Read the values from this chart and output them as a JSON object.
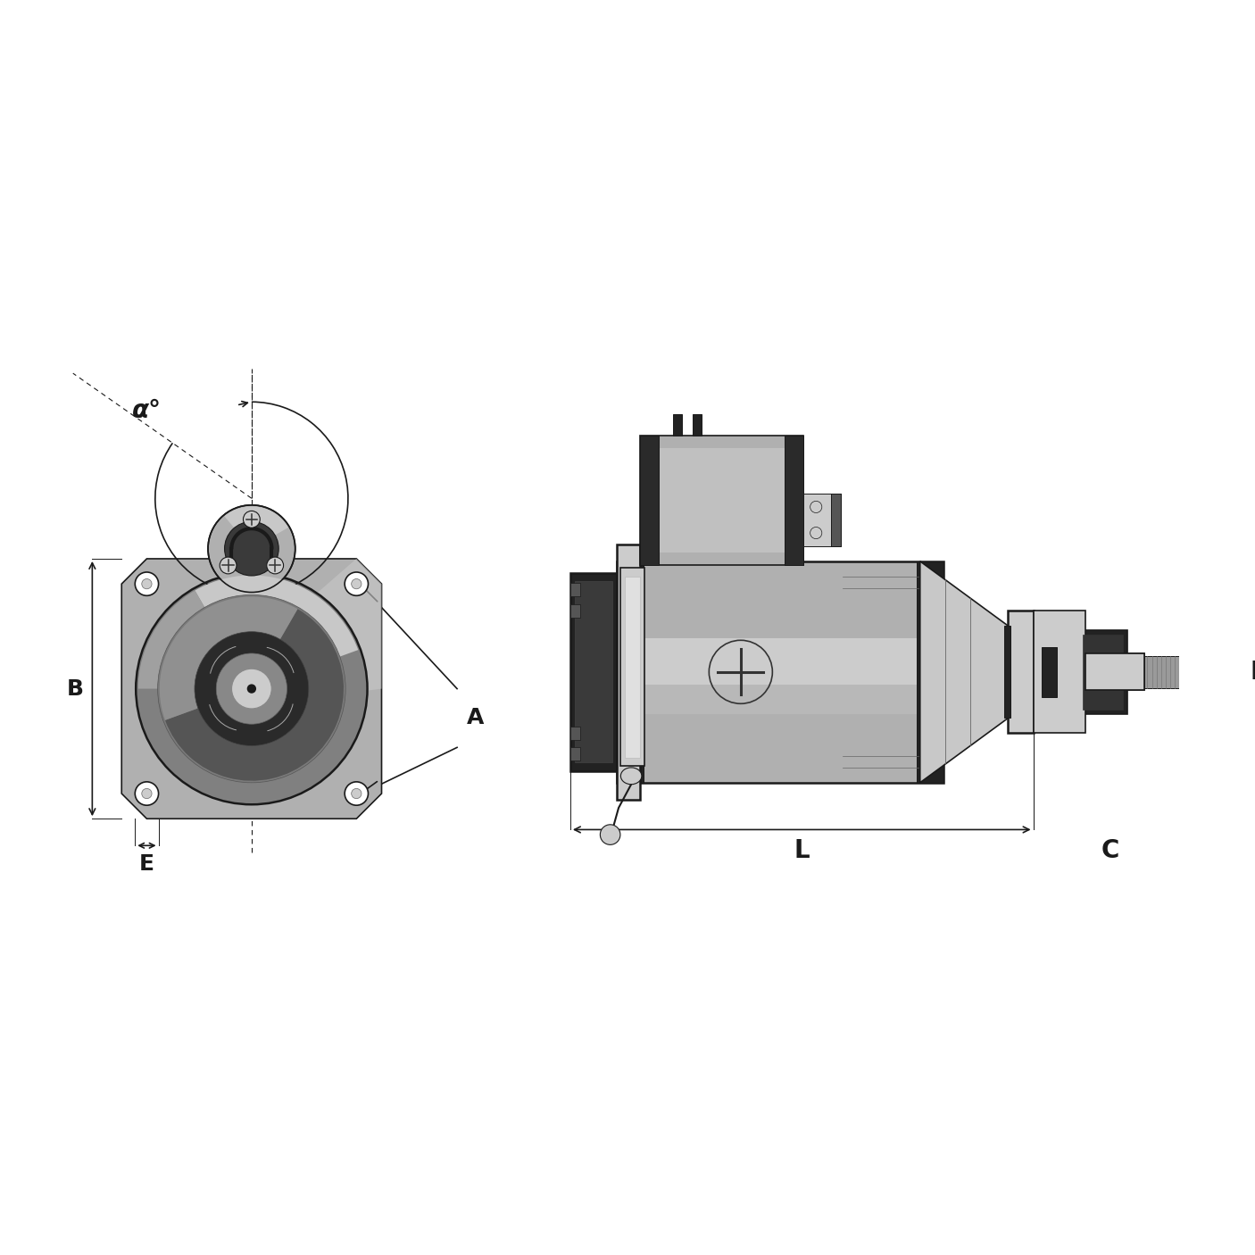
{
  "bg_color": "#ffffff",
  "lc": "#1a1a1a",
  "dg": "#333333",
  "mg": "#666666",
  "lg": "#999999",
  "llg": "#cccccc",
  "sv": "#b0b0b0",
  "sv2": "#c8c8c8",
  "dsv": "#808080",
  "nb": "#1e1e1e",
  "blk": "#222222",
  "label_alpha": "α°",
  "label_A": "A",
  "label_B": "B",
  "label_C": "C",
  "label_D": "D",
  "label_E": "E",
  "label_L": "L"
}
